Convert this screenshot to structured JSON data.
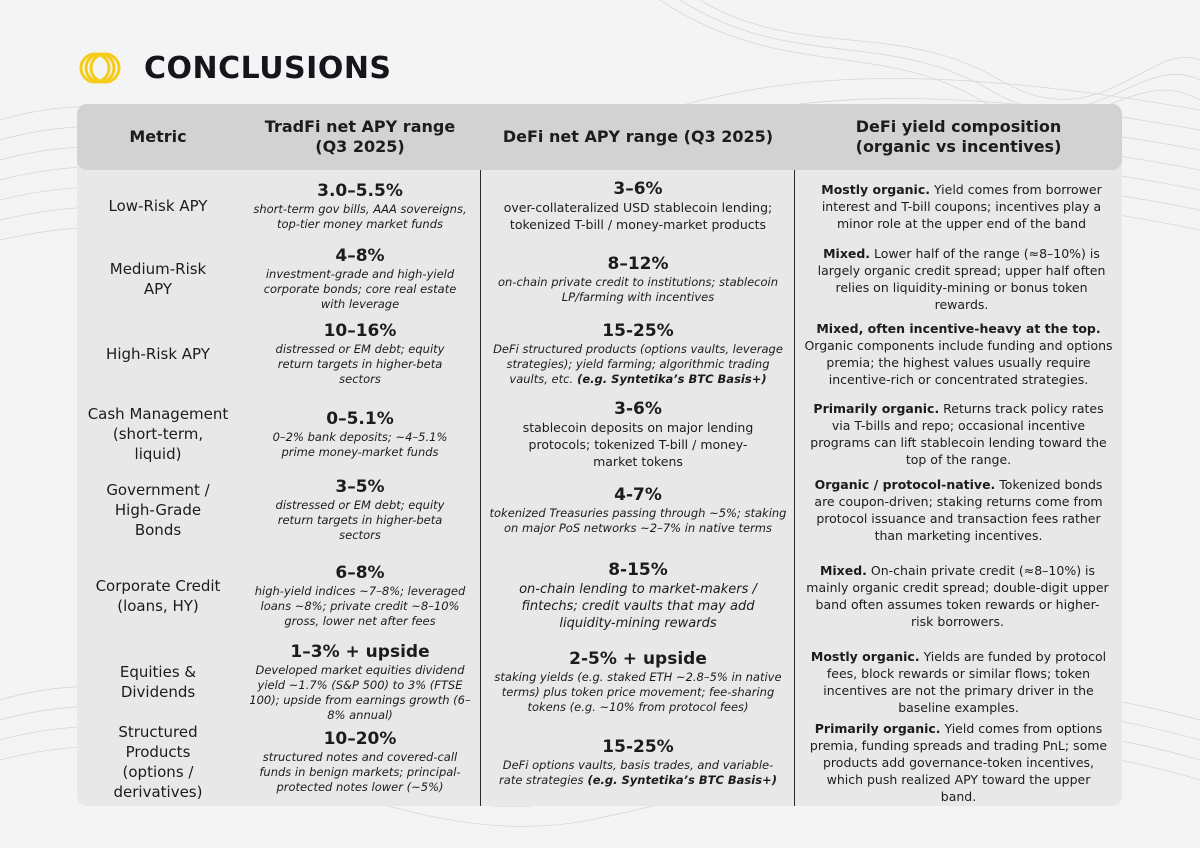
{
  "title": "CONCLUSIONS",
  "columns": [
    "Metric",
    "TradFi net APY range (Q3 2025)",
    "DeFi net APY range (Q3 2025)",
    "DeFi yield composition (organic vs incentives)"
  ],
  "rows": [
    {
      "metric": "Low-Risk APY",
      "tradfi_range": "3.0–5.5%",
      "tradfi_note": "short-term gov bills, AAA sovereigns, top-tier money market funds",
      "defi_range": "3–6%",
      "defi_note": "over-collateralized USD stablecoin lending; tokenized T-bill / money-market products",
      "comp_lead": "Mostly organic.",
      "comp_text": " Yield comes from borrower interest and T-bill coupons; incentives play a minor role at the upper end of the band"
    },
    {
      "metric": "Medium-Risk APY",
      "tradfi_range": "4–8%",
      "tradfi_note": "investment-grade and high-yield corporate bonds; core real estate with leverage",
      "defi_range": "8–12%",
      "defi_note": "on-chain private credit to institutions; stablecoin LP/farming with incentives",
      "comp_lead": "Mixed.",
      "comp_text": " Lower half of the range (≈8–10%) is largely organic credit spread; upper half often relies on liquidity-mining or bonus token rewards."
    },
    {
      "metric": "High-Risk APY",
      "tradfi_range": "10–16%",
      "tradfi_note": "distressed or EM debt; equity return targets in higher-beta sectors",
      "defi_range": "15-25%",
      "defi_note": "DeFi structured products (options vaults, leverage strategies); yield farming; algorithmic trading vaults, etc.",
      "defi_note_bold": " (e.g. Syntetika’s BTC Basis+)",
      "comp_lead": "Mixed, often incentive-heavy at the top.",
      "comp_text": " Organic components include funding and options premia; the highest values usually require incentive-rich or concentrated strategies."
    },
    {
      "metric": "Cash Management",
      "metric_sub": "(short-term, liquid)",
      "tradfi_range": "0–5.1%",
      "tradfi_note": "0–2% bank deposits; ~4–5.1% prime money-market funds",
      "defi_range": "3-6%",
      "defi_note": "stablecoin deposits on major lending protocols; tokenized T-bill / money-market tokens",
      "comp_lead": "Primarily organic.",
      "comp_text": " Returns track policy rates via T-bills and repo; occasional incentive programs can lift stablecoin lending toward the top of the range."
    },
    {
      "metric": "Government / High-Grade Bonds",
      "tradfi_range": "3–5%",
      "tradfi_note": "distressed or EM debt; equity return targets in higher-beta sectors",
      "defi_range": "4-7%",
      "defi_note": "tokenized Treasuries passing through ~5%; staking on major PoS networks ~2–7% in native terms",
      "comp_lead": "Organic / protocol-native.",
      "comp_text": " Tokenized bonds are coupon-driven; staking returns come from protocol issuance and transaction fees rather than marketing incentives."
    },
    {
      "metric": "Corporate Credit",
      "metric_sub": "(loans, HY)",
      "tradfi_range": "6–8%",
      "tradfi_note": "high-yield indices ~7–8%; leveraged loans ~8%; private credit ~8–10% gross, lower net after fees",
      "defi_range": "8-15%",
      "defi_note": "on-chain lending to market-makers / fintechs; credit vaults that may add liquidity-mining rewards",
      "comp_lead": "Mixed.",
      "comp_text": " On-chain private credit (≈8–10%) is mainly organic credit spread; double-digit upper band often assumes token rewards or higher-risk borrowers."
    },
    {
      "metric": "Equities & Dividends",
      "tradfi_range": "1–3% + upside",
      "tradfi_note": "Developed market equities dividend yield ~1.7% (S&P 500) to 3% (FTSE 100); upside from earnings growth (6–8% annual)",
      "defi_range": "2-5% + upside",
      "defi_note": "staking yields (e.g. staked ETH ~2.8–5% in native terms) plus token price movement; fee-sharing tokens (e.g. ~10% from protocol fees)",
      "comp_lead": "Mostly organic.",
      "comp_text": " Yields are funded by protocol fees, block rewards or similar flows; token incentives are not the primary driver in the baseline examples."
    },
    {
      "metric": "Structured Products",
      "metric_sub": "(options / derivatives)",
      "tradfi_range": "10–20%",
      "tradfi_note": "structured notes and covered-call funds in benign markets; principal-protected notes lower (~5%)",
      "defi_range": "15-25%",
      "defi_note": "DeFi options vaults, basis trades, and variable-rate strategies",
      "defi_note_bold": " (e.g. Syntetika’s BTC Basis+)",
      "comp_lead": "Primarily organic.",
      "comp_text": " Yield comes from options premia, funding spreads and trading PnL; some products add governance-token incentives, which push realized APY toward the upper band."
    }
  ],
  "colors": {
    "accent_yellow": "#f5cc1a",
    "table_bg": "#e8e8e8",
    "header_bg": "#d2d2d2",
    "text": "#1c1c1c"
  }
}
